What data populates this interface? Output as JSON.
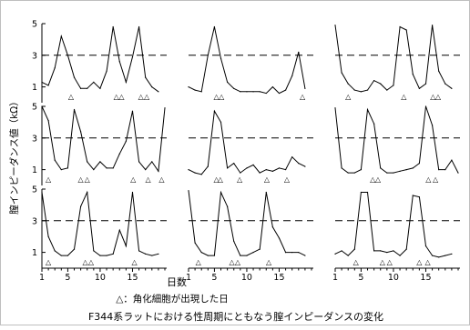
{
  "chart_data": {
    "type": "line",
    "title": "F344系ラットにおける性周期にともなう膣インピーダンスの変化",
    "ylabel": "膣インピーダンス値（kΩ）",
    "xlabel": "日数",
    "legend_note": "△：角化細胞が出現した日",
    "marker_symbol": "△",
    "ylim": [
      0,
      5
    ],
    "yticks": [
      1,
      3,
      5
    ],
    "xlim": [
      1,
      20
    ],
    "threshold": 3,
    "xticks_left": [
      1,
      5,
      10,
      15
    ],
    "xticks_mid": [
      1,
      5,
      10,
      15
    ],
    "xticks_right": [
      1,
      5,
      10,
      15
    ],
    "panels": [
      {
        "x": [
          1,
          2,
          3,
          4,
          5,
          6,
          7,
          8,
          9,
          10,
          11,
          12,
          13,
          14,
          15,
          16,
          17,
          18,
          19
        ],
        "y": [
          1.3,
          1.1,
          2.2,
          4.2,
          3.0,
          1.6,
          0.9,
          0.9,
          1.3,
          0.9,
          2.0,
          4.8,
          2.6,
          1.3,
          2.9,
          4.8,
          1.6,
          1.0,
          0.7
        ],
        "markers": [
          5.5,
          12.5,
          13.3,
          16.3,
          17.2
        ]
      },
      {
        "x": [
          1,
          2,
          3,
          4,
          5,
          6,
          7,
          8,
          9,
          10,
          11,
          12,
          13,
          14,
          15,
          16,
          17,
          18,
          19
        ],
        "y": [
          1.0,
          0.8,
          0.7,
          3.0,
          4.8,
          2.8,
          1.3,
          0.9,
          0.7,
          0.7,
          0.7,
          0.7,
          0.6,
          1.0,
          0.6,
          0.8,
          1.7,
          3.2,
          0.9
        ],
        "markers": [
          5.3,
          6.1,
          18.6
        ]
      },
      {
        "x": [
          1,
          2,
          3,
          4,
          5,
          6,
          7,
          8,
          9,
          10,
          11,
          12,
          13,
          14,
          15,
          16,
          17,
          18,
          19
        ],
        "y": [
          4.9,
          1.9,
          1.2,
          0.8,
          0.7,
          0.8,
          1.4,
          1.2,
          0.8,
          1.1,
          4.8,
          4.6,
          1.8,
          0.9,
          1.2,
          4.9,
          2.0,
          1.2,
          0.9
        ],
        "markers": [
          3.0,
          11.6,
          16.1,
          16.9
        ]
      },
      {
        "x": [
          1,
          2,
          3,
          4,
          5,
          6,
          7,
          8,
          9,
          10,
          11,
          12,
          13,
          14,
          15,
          16,
          17,
          18,
          19,
          20
        ],
        "y": [
          5.0,
          4.1,
          1.6,
          1.0,
          1.1,
          4.8,
          3.4,
          1.5,
          1.0,
          1.5,
          1.1,
          1.1,
          2.0,
          2.8,
          4.7,
          1.5,
          1.0,
          1.5,
          0.9,
          4.9
        ],
        "markers": [
          2.0,
          7.0,
          8.0,
          15.1,
          17.4,
          19.5
        ]
      },
      {
        "x": [
          1,
          2,
          3,
          4,
          5,
          6,
          7,
          8,
          9,
          10,
          11,
          12,
          13,
          14,
          15,
          16,
          17,
          18,
          19
        ],
        "y": [
          1.0,
          0.8,
          0.7,
          1.2,
          4.7,
          4.0,
          1.1,
          1.4,
          0.8,
          1.1,
          1.3,
          0.8,
          1.0,
          0.9,
          1.1,
          1.0,
          1.8,
          1.4,
          1.2
        ],
        "markers": [
          5.3,
          5.9,
          8.9,
          13.1,
          16.2
        ]
      },
      {
        "x": [
          1,
          2,
          3,
          4,
          5,
          6,
          7,
          8,
          9,
          10,
          11,
          12,
          13,
          14,
          15,
          16,
          17,
          18,
          19,
          20
        ],
        "y": [
          4.9,
          1.1,
          0.8,
          0.8,
          1.0,
          4.8,
          3.9,
          1.1,
          0.8,
          0.8,
          0.9,
          1.0,
          1.1,
          1.4,
          5.0,
          3.8,
          1.0,
          1.0,
          1.6,
          0.8
        ],
        "markers": [
          6.8,
          7.6,
          15.4,
          16.5
        ]
      },
      {
        "x": [
          1,
          2,
          3,
          4,
          5,
          6,
          7,
          8,
          9,
          10,
          11,
          12,
          13,
          14,
          15,
          16,
          17,
          18,
          19
        ],
        "y": [
          4.8,
          2.0,
          1.1,
          0.8,
          0.8,
          1.2,
          3.9,
          4.8,
          1.1,
          0.8,
          0.8,
          0.9,
          2.4,
          1.4,
          4.8,
          1.1,
          0.9,
          0.8,
          0.9
        ],
        "markers": [
          2.0,
          7.7,
          8.6,
          15.3
        ]
      },
      {
        "x": [
          1,
          2,
          3,
          4,
          5,
          6,
          7,
          8,
          9,
          10,
          11,
          12,
          13,
          14,
          15,
          16,
          17,
          18,
          19
        ],
        "y": [
          4.9,
          1.6,
          1.0,
          0.8,
          0.8,
          4.8,
          3.9,
          1.7,
          0.8,
          0.8,
          1.0,
          1.2,
          4.8,
          2.6,
          1.9,
          1.0,
          1.0,
          1.0,
          0.8
        ],
        "markers": [
          2.5,
          7.7,
          8.6,
          13.4
        ]
      },
      {
        "x": [
          1,
          2,
          3,
          4,
          5,
          6,
          7,
          8,
          9,
          10,
          11,
          12,
          13,
          14,
          15,
          16,
          17,
          18,
          19
        ],
        "y": [
          0.9,
          1.1,
          0.8,
          1.2,
          4.8,
          4.8,
          1.1,
          1.1,
          1.0,
          1.1,
          0.8,
          1.2,
          4.6,
          4.5,
          1.4,
          0.8,
          0.7,
          0.8,
          0.9
        ],
        "markers": [
          4.2,
          8.3,
          9.4,
          14.0,
          15.3
        ]
      }
    ]
  }
}
